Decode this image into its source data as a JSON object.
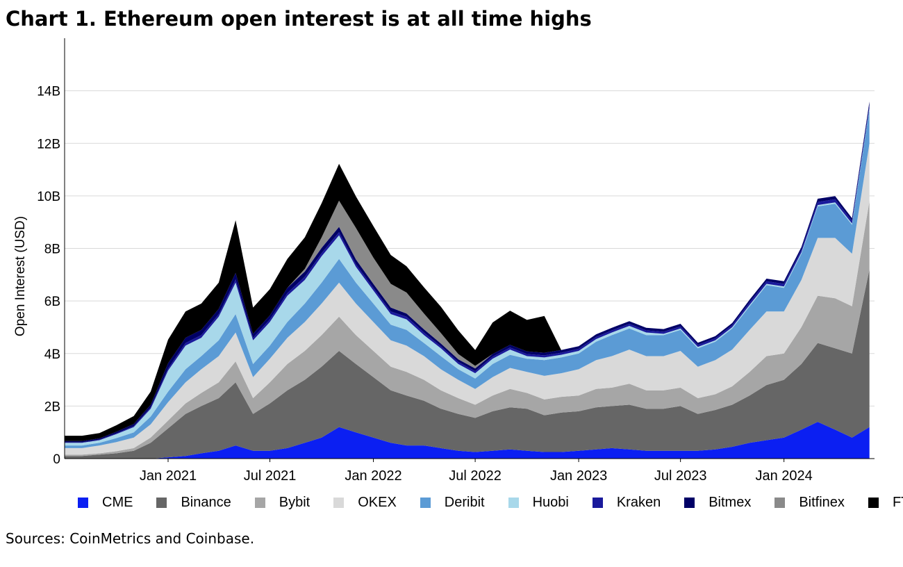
{
  "title": "Chart 1. Ethereum open interest is at all time highs",
  "source": "Sources: CoinMetrics and Coinbase.",
  "chart_data": {
    "type": "area",
    "stacked": true,
    "xlabel": "",
    "ylabel": "Open Interest (USD)",
    "ylim": [
      0,
      16
    ],
    "y_unit": "B",
    "yticks": [
      0,
      2,
      4,
      6,
      8,
      10,
      12,
      14
    ],
    "ytick_labels": [
      "0",
      "2B",
      "4B",
      "6B",
      "8B",
      "10B",
      "12B",
      "14B"
    ],
    "xlim": [
      "2020-07-01",
      "2024-06-10"
    ],
    "xticks": [
      "2021-01-01",
      "2021-07-01",
      "2022-01-01",
      "2022-07-01",
      "2023-01-01",
      "2023-07-01",
      "2024-01-01"
    ],
    "xtick_labels": [
      "Jan 2021",
      "Jul 2021",
      "Jan 2022",
      "Jul 2022",
      "Jan 2023",
      "Jul 2023",
      "Jan 2024"
    ],
    "grid": true,
    "legend_position": "bottom",
    "x": [
      "2020-07-01",
      "2020-08-01",
      "2020-09-01",
      "2020-10-01",
      "2020-11-01",
      "2020-12-01",
      "2021-01-01",
      "2021-02-01",
      "2021-03-01",
      "2021-04-01",
      "2021-05-01",
      "2021-06-01",
      "2021-07-01",
      "2021-08-01",
      "2021-09-01",
      "2021-10-01",
      "2021-11-01",
      "2021-12-01",
      "2022-01-01",
      "2022-02-01",
      "2022-03-01",
      "2022-04-01",
      "2022-05-01",
      "2022-06-01",
      "2022-07-01",
      "2022-08-01",
      "2022-09-01",
      "2022-10-01",
      "2022-11-01",
      "2022-12-01",
      "2023-01-01",
      "2023-02-01",
      "2023-03-01",
      "2023-04-01",
      "2023-05-01",
      "2023-06-01",
      "2023-07-01",
      "2023-08-01",
      "2023-09-01",
      "2023-10-01",
      "2023-11-01",
      "2023-12-01",
      "2024-01-01",
      "2024-02-01",
      "2024-03-01",
      "2024-04-01",
      "2024-05-01",
      "2024-06-01"
    ],
    "series": [
      {
        "name": "CME",
        "color": "#0b1ff2",
        "values": [
          0,
          0,
          0,
          0,
          0,
          0,
          0.05,
          0.1,
          0.2,
          0.3,
          0.5,
          0.3,
          0.3,
          0.4,
          0.6,
          0.8,
          1.2,
          1.0,
          0.8,
          0.6,
          0.5,
          0.5,
          0.4,
          0.3,
          0.25,
          0.3,
          0.35,
          0.3,
          0.25,
          0.25,
          0.3,
          0.35,
          0.4,
          0.35,
          0.3,
          0.3,
          0.3,
          0.3,
          0.35,
          0.45,
          0.6,
          0.7,
          0.8,
          1.1,
          1.4,
          1.1,
          0.8,
          1.2
        ]
      },
      {
        "name": "Binance",
        "color": "#666666",
        "values": [
          0.1,
          0.1,
          0.15,
          0.2,
          0.3,
          0.6,
          1.1,
          1.6,
          1.8,
          2.0,
          2.4,
          1.4,
          1.8,
          2.2,
          2.4,
          2.7,
          2.9,
          2.6,
          2.3,
          2.0,
          1.9,
          1.7,
          1.5,
          1.4,
          1.3,
          1.5,
          1.6,
          1.6,
          1.4,
          1.5,
          1.5,
          1.6,
          1.6,
          1.7,
          1.6,
          1.6,
          1.7,
          1.4,
          1.5,
          1.6,
          1.8,
          2.1,
          2.2,
          2.5,
          3.0,
          3.1,
          3.2,
          6.0
        ]
      },
      {
        "name": "Bybit",
        "color": "#a6a6a6",
        "values": [
          0.05,
          0.05,
          0.05,
          0.08,
          0.1,
          0.2,
          0.3,
          0.4,
          0.5,
          0.6,
          0.8,
          0.6,
          0.8,
          1.0,
          1.1,
          1.2,
          1.3,
          1.1,
          1.0,
          0.9,
          0.9,
          0.8,
          0.7,
          0.6,
          0.5,
          0.6,
          0.7,
          0.6,
          0.6,
          0.6,
          0.6,
          0.7,
          0.7,
          0.8,
          0.7,
          0.7,
          0.7,
          0.6,
          0.6,
          0.7,
          0.9,
          1.1,
          1.0,
          1.4,
          1.8,
          1.9,
          1.8,
          2.6
        ]
      },
      {
        "name": "OKEX",
        "color": "#d9d9d9",
        "values": [
          0.25,
          0.25,
          0.3,
          0.35,
          0.4,
          0.5,
          0.7,
          0.8,
          0.9,
          1.0,
          1.1,
          0.8,
          0.9,
          1.0,
          1.1,
          1.2,
          1.3,
          1.2,
          1.1,
          1.0,
          1.0,
          0.9,
          0.8,
          0.7,
          0.6,
          0.7,
          0.8,
          0.8,
          0.9,
          0.9,
          1.0,
          1.1,
          1.2,
          1.3,
          1.3,
          1.3,
          1.4,
          1.2,
          1.3,
          1.4,
          1.6,
          1.7,
          1.6,
          1.8,
          2.2,
          2.3,
          2.0,
          2.2
        ]
      },
      {
        "name": "Deribit",
        "color": "#5b9bd5",
        "values": [
          0.1,
          0.1,
          0.1,
          0.15,
          0.2,
          0.3,
          0.4,
          0.5,
          0.5,
          0.6,
          0.7,
          0.5,
          0.5,
          0.6,
          0.7,
          0.8,
          0.9,
          0.8,
          0.7,
          0.6,
          0.6,
          0.5,
          0.5,
          0.4,
          0.4,
          0.5,
          0.5,
          0.5,
          0.6,
          0.6,
          0.6,
          0.7,
          0.8,
          0.8,
          0.8,
          0.8,
          0.8,
          0.7,
          0.7,
          0.8,
          0.9,
          1.0,
          0.9,
          1.0,
          1.2,
          1.3,
          1.1,
          1.3
        ]
      },
      {
        "name": "Huobi",
        "color": "#a8d8ea",
        "values": [
          0.1,
          0.1,
          0.1,
          0.15,
          0.2,
          0.3,
          0.8,
          0.9,
          0.7,
          0.9,
          1.2,
          0.9,
          0.9,
          1.0,
          0.9,
          1.0,
          0.9,
          0.6,
          0.5,
          0.4,
          0.4,
          0.3,
          0.3,
          0.2,
          0.2,
          0.2,
          0.2,
          0.1,
          0.1,
          0.1,
          0.1,
          0.1,
          0.1,
          0.1,
          0.1,
          0.05,
          0.05,
          0.05,
          0.05,
          0.05,
          0.05,
          0.05,
          0.05,
          0.05,
          0.05,
          0.05,
          0.05,
          0.05
        ]
      },
      {
        "name": "Kraken",
        "color": "#1a1a9c",
        "values": [
          0.02,
          0.02,
          0.02,
          0.03,
          0.04,
          0.05,
          0.08,
          0.1,
          0.1,
          0.1,
          0.12,
          0.1,
          0.1,
          0.1,
          0.12,
          0.12,
          0.12,
          0.1,
          0.1,
          0.1,
          0.1,
          0.1,
          0.08,
          0.08,
          0.08,
          0.08,
          0.08,
          0.08,
          0.08,
          0.08,
          0.08,
          0.08,
          0.08,
          0.08,
          0.08,
          0.08,
          0.08,
          0.08,
          0.08,
          0.08,
          0.1,
          0.1,
          0.1,
          0.1,
          0.12,
          0.12,
          0.1,
          0.12
        ]
      },
      {
        "name": "Bitmex",
        "color": "#000066",
        "values": [
          0.05,
          0.05,
          0.05,
          0.06,
          0.08,
          0.1,
          0.2,
          0.2,
          0.2,
          0.2,
          0.25,
          0.15,
          0.15,
          0.2,
          0.2,
          0.2,
          0.2,
          0.18,
          0.15,
          0.15,
          0.12,
          0.12,
          0.1,
          0.1,
          0.1,
          0.1,
          0.1,
          0.1,
          0.1,
          0.1,
          0.1,
          0.1,
          0.1,
          0.1,
          0.1,
          0.1,
          0.1,
          0.08,
          0.08,
          0.08,
          0.1,
          0.1,
          0.1,
          0.1,
          0.12,
          0.12,
          0.1,
          0.12
        ]
      },
      {
        "name": "Bitfinex",
        "color": "#8a8a8a",
        "values": [
          0,
          0,
          0,
          0,
          0,
          0,
          0,
          0,
          0,
          0,
          0,
          0,
          0,
          0,
          0.1,
          0.4,
          1.0,
          1.2,
          1.0,
          0.9,
          0.8,
          0.6,
          0.4,
          0.2,
          0.1,
          0,
          0,
          0,
          0,
          0,
          0,
          0,
          0,
          0,
          0,
          0,
          0,
          0,
          0,
          0,
          0,
          0,
          0,
          0,
          0,
          0,
          0,
          0
        ]
      },
      {
        "name": "FTX",
        "color": "#000000",
        "values": [
          0.2,
          0.2,
          0.2,
          0.25,
          0.3,
          0.5,
          0.9,
          1.0,
          1.0,
          1.0,
          2.0,
          1.0,
          1.0,
          1.1,
          1.2,
          1.3,
          1.4,
          1.2,
          1.2,
          1.1,
          1.0,
          1.0,
          1.0,
          0.9,
          0.6,
          1.2,
          1.3,
          1.2,
          1.4,
          0,
          0,
          0,
          0,
          0,
          0,
          0,
          0,
          0,
          0,
          0,
          0,
          0,
          0,
          0,
          0,
          0,
          0,
          0
        ]
      }
    ]
  }
}
